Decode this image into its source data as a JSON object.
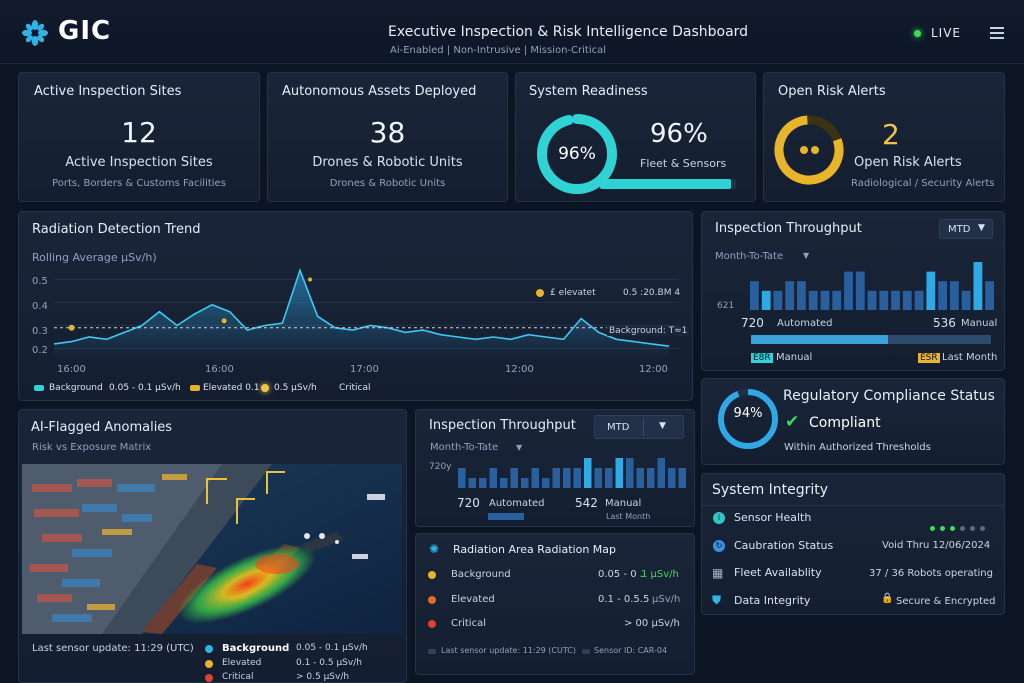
{
  "header": {
    "brand": "GIC",
    "title": "Executive Inspection & Risk Intelligence Dashboard",
    "subtitle": "Ai-Enabled | Non-Intrusive | Mission-Critical",
    "live_label": "LIVE"
  },
  "kpis": {
    "sites": {
      "title": "Active Inspection Sites",
      "value": "12",
      "label": "Active Inspection Sites",
      "sub": "Ports, Borders & Customs Facilities"
    },
    "assets": {
      "title": "Autonomous Assets Deployed",
      "value": "38",
      "label": "Drones & Robotic Units",
      "sub": "Drones & Robotic Units"
    },
    "readiness": {
      "title": "System Readiness",
      "ring_value": "96%",
      "value": "96%",
      "label": "Fleet & Sensors",
      "percent": 0.96
    },
    "alerts": {
      "title": "Open Risk Alerts",
      "value": "2",
      "label": "Open Risk Alerts",
      "sub": "Radiological / Security Alerts"
    }
  },
  "trend": {
    "title": "Radiation Detection Trend",
    "subtitle": "Rolling Average µSv/h)",
    "yticks": [
      "0.5",
      "0.4",
      "0.3",
      "0.2"
    ],
    "xticks": [
      "16:00",
      "16:00",
      "17:00",
      "12:00",
      "12:00"
    ],
    "legend_elevated": "£ elevatet",
    "legend_value": "0.5 :20.BM 4",
    "background_tag": "Background: T≈1",
    "bottom_legend": {
      "background": "Background",
      "background_range": "0.05 - 0.1 µSv/h",
      "elevated": "Elevated 0.1",
      "elevated_value": "0.5  µSv/h",
      "critical": "Critical"
    },
    "chart_data": {
      "type": "line",
      "series": [
        {
          "name": "Rolling Average",
          "values": [
            0.22,
            0.23,
            0.25,
            0.24,
            0.27,
            0.3,
            0.36,
            0.3,
            0.35,
            0.39,
            0.36,
            0.28,
            0.3,
            0.31,
            0.54,
            0.34,
            0.29,
            0.28,
            0.3,
            0.29,
            0.27,
            0.28,
            0.26,
            0.25,
            0.24,
            0.25,
            0.24,
            0.26,
            0.25,
            0.24,
            0.33,
            0.27,
            0.24,
            0.23,
            0.22,
            0.21
          ]
        }
      ],
      "threshold": 0.29,
      "ylim": [
        0.15,
        0.55
      ]
    }
  },
  "throughput_top": {
    "title": "Inspection Throughput",
    "dropdown": "MTD",
    "period": "Month-To-Tate",
    "side_value": "621",
    "automated_value": "720",
    "automated_label": "Automated",
    "manual_value": "536",
    "manual_label": "Manual",
    "legend_manual_tag": "E8R",
    "legend_manual": "Manual",
    "legend_last_tag": "ESR",
    "legend_last": "Last Month",
    "automated_share": 0.57,
    "chart_data": {
      "type": "bar",
      "values": [
        3,
        2,
        2,
        3,
        3,
        2,
        2,
        2,
        4,
        4,
        2,
        2,
        2,
        2,
        2,
        4,
        3,
        3,
        2,
        5,
        3
      ],
      "ylim": [
        0,
        5
      ]
    }
  },
  "compliance": {
    "title": "Regulatory Compliance Status",
    "ring_value": "94%",
    "percent": 0.94,
    "status": "Compliant",
    "sub": "Within Authorized Thresholds"
  },
  "anomalies": {
    "title": "AI-Flagged Anomalies",
    "subtitle": "Risk vs Exposure Matrix",
    "last_update": "Last sensor update: 11:29 (UTC)",
    "legend": [
      {
        "label": "Background",
        "range": "0.05 - 0.1 µSv/h",
        "color": "#2fb4e6"
      },
      {
        "label": "Elevated",
        "range": "0.1 - 0.5 µSv/h",
        "color": "#e8b52a"
      },
      {
        "label": "Critical",
        "range": "> 0.5 µSv/h",
        "color": "#d9432f"
      }
    ]
  },
  "throughput_mid": {
    "title": "Inspection Throughput",
    "dropdown": "MTD",
    "period": "Month-To-Tate",
    "side_value": "720y",
    "automated_value": "720",
    "automated_label": "Automated",
    "manual_value": "542",
    "manual_label": "Manual",
    "last_month": "Last Month",
    "chart_data": {
      "type": "bar",
      "values": [
        2,
        1,
        1,
        2,
        1,
        2,
        1,
        2,
        1,
        2,
        2,
        2,
        3,
        2,
        2,
        3,
        3,
        2,
        2,
        3,
        2,
        2
      ],
      "ylim": [
        0,
        3
      ]
    }
  },
  "radmap": {
    "title": "Radiation Area Radiation Map",
    "rows": [
      {
        "label": "Background",
        "value": "0.05 - 0 .",
        "unit": "1 µSv/h",
        "color": "#e8b52a",
        "unit_color": "#3ddc5c"
      },
      {
        "label": "Elevated",
        "value": "0.1 - 0.5.5",
        "unit": "µSv/h",
        "color": "#e06a2c",
        "unit_color": "#8fa2bc"
      },
      {
        "label": "Critical",
        "value": "> 00 µSv/h",
        "unit": "",
        "color": "#d9432f",
        "unit_color": "#8fa2bc"
      }
    ],
    "footer_update": "Last sensor update: 11:29 (CUTC)",
    "footer_sensor": "Sensor ID: CAR-04"
  },
  "integrity": {
    "title": "System Integrity",
    "rows": [
      {
        "label": "Sensor Health",
        "value": "",
        "color": "#2fc6c6"
      },
      {
        "label": "Caubration Status",
        "value": "Void Thru 12/06/2024",
        "color": "#3a8fe0"
      },
      {
        "label": "Fleet Availablity",
        "value": "37 / 36 Robots operating",
        "color": "#9fb0c8"
      },
      {
        "label": "Data Integrity",
        "value": "Secure & Encrypted",
        "color": "#2fb4e6"
      }
    ],
    "health_dots": 6,
    "health_active": 3
  },
  "colors": {
    "accent": "#2fd3d3",
    "bar": "#2a5f9e",
    "bar_highlight": "#2fa8e6",
    "gold": "#e8b52a",
    "green": "#3ddc5c"
  }
}
